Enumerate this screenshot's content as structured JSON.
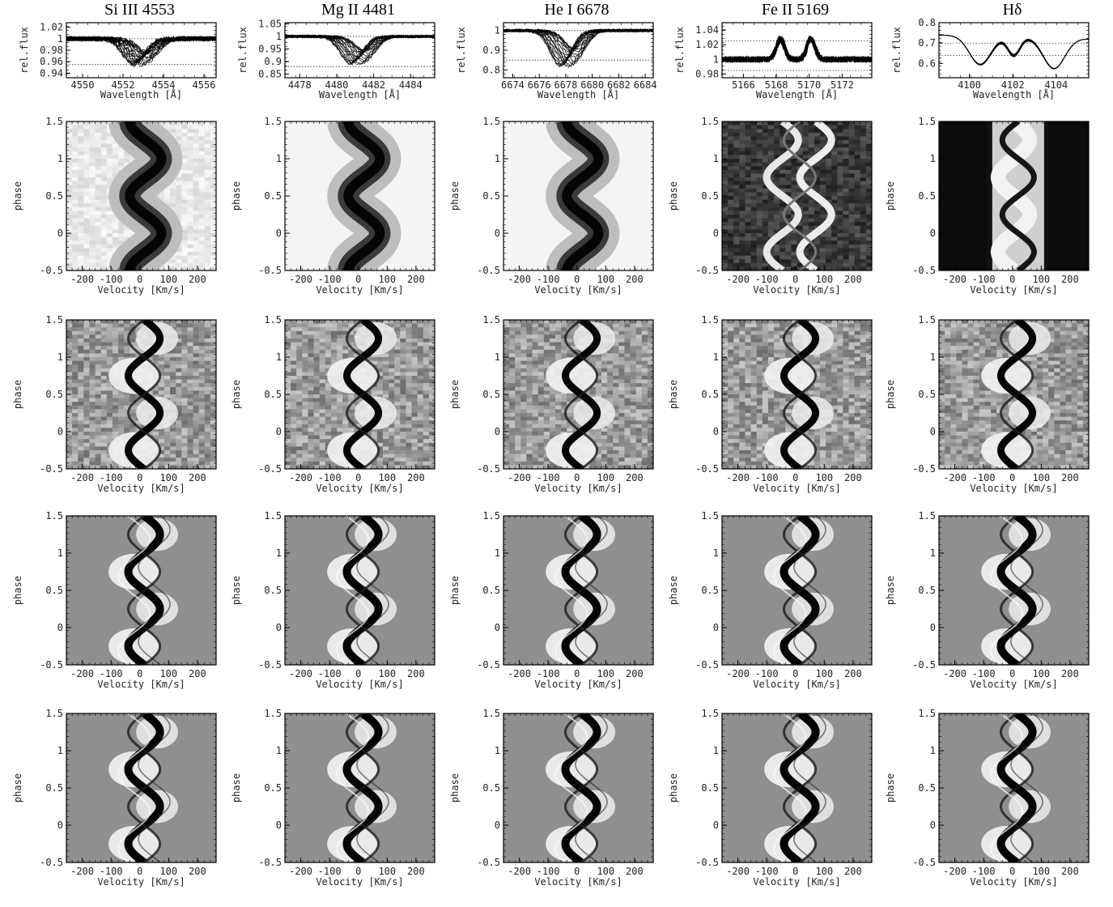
{
  "columns": [
    {
      "id": "si",
      "title": "Si III 4553",
      "spectrum": {
        "xticks": [
          "4550",
          "4552",
          "4554",
          "4556"
        ],
        "xrange": [
          4549.2,
          4556.6
        ],
        "yticks": [
          "1.02",
          "1",
          "0.98",
          "0.96",
          "0.94"
        ],
        "yrange": [
          0.932,
          1.028
        ],
        "center": 4552.9,
        "width": 0.75,
        "depth": 0.045,
        "dotted_lines": [
          1.0,
          0.955
        ],
        "feature": "absorption"
      }
    },
    {
      "id": "mg",
      "title": "Mg II 4481",
      "spectrum": {
        "xticks": [
          "4478",
          "4480",
          "4482",
          "4484"
        ],
        "xrange": [
          4477.2,
          4485.3
        ],
        "yticks": [
          "1.05",
          "1",
          "0.95",
          "0.9",
          "0.85"
        ],
        "yrange": [
          0.835,
          1.055
        ],
        "center": 4481.2,
        "width": 0.8,
        "depth": 0.11,
        "dotted_lines": [
          1.0,
          0.88
        ],
        "feature": "absorption"
      }
    },
    {
      "id": "he",
      "title": "He I 6678",
      "spectrum": {
        "xticks": [
          "6674",
          "6676",
          "6678",
          "6680",
          "6682",
          "6684"
        ],
        "xrange": [
          6673.3,
          6684.6
        ],
        "yticks": [
          "1",
          "0.9",
          "0.8"
        ],
        "yrange": [
          0.76,
          1.04
        ],
        "center": 6678.2,
        "width": 1.1,
        "depth": 0.18,
        "dotted_lines": [
          1.0,
          0.85
        ],
        "feature": "absorption"
      }
    },
    {
      "id": "fe",
      "title": "Fe II 5169",
      "spectrum": {
        "xticks": [
          "5166",
          "5168",
          "5170",
          "5172"
        ],
        "xrange": [
          5164.7,
          5173.8
        ],
        "yticks": [
          "1.04",
          "1.02",
          "1",
          "0.98"
        ],
        "yrange": [
          0.975,
          1.05
        ],
        "center": 5169.15,
        "width": 0.45,
        "depth": -0.03,
        "dotted_lines": [
          1.025,
          0.985
        ],
        "feature": "double-emission"
      }
    },
    {
      "id": "hd",
      "title": "Hδ",
      "spectrum": {
        "xticks": [
          "4100",
          "4102",
          "4104"
        ],
        "xrange": [
          4098.6,
          4105.5
        ],
        "yticks": [
          "0.8",
          "0.7",
          "0.6"
        ],
        "yrange": [
          0.53,
          0.8
        ],
        "center": 4102.2,
        "width": 0.6,
        "depth": 0.1,
        "dotted_lines": [
          0.7,
          0.64
        ],
        "feature": "double-peak"
      }
    }
  ],
  "spectrum_axis": {
    "xlabel": "Wavelength [Å]",
    "ylabel": "rel.flux"
  },
  "dynamic_axis": {
    "xlabel": "Velocity [Km/s]",
    "ylabel": "phase",
    "xticks": [
      "-200",
      "-100",
      "0",
      "100",
      "200"
    ],
    "xtick_values": [
      -200,
      -100,
      0,
      100,
      200
    ],
    "xrange": [
      -255,
      265
    ],
    "yticks": [
      "1.5",
      "1",
      "0.5",
      "0",
      "-0.5"
    ],
    "ytick_values": [
      1.5,
      1,
      0.5,
      0,
      -0.5
    ],
    "yrange": [
      -0.5,
      1.5
    ]
  },
  "rows": [
    {
      "id": "observed-profiles",
      "kind": "observed"
    },
    {
      "id": "observed-residuals",
      "kind": "residual-noisy"
    },
    {
      "id": "model-residuals-a",
      "kind": "residual-model"
    },
    {
      "id": "model-residuals-b",
      "kind": "residual-model-b"
    }
  ]
}
